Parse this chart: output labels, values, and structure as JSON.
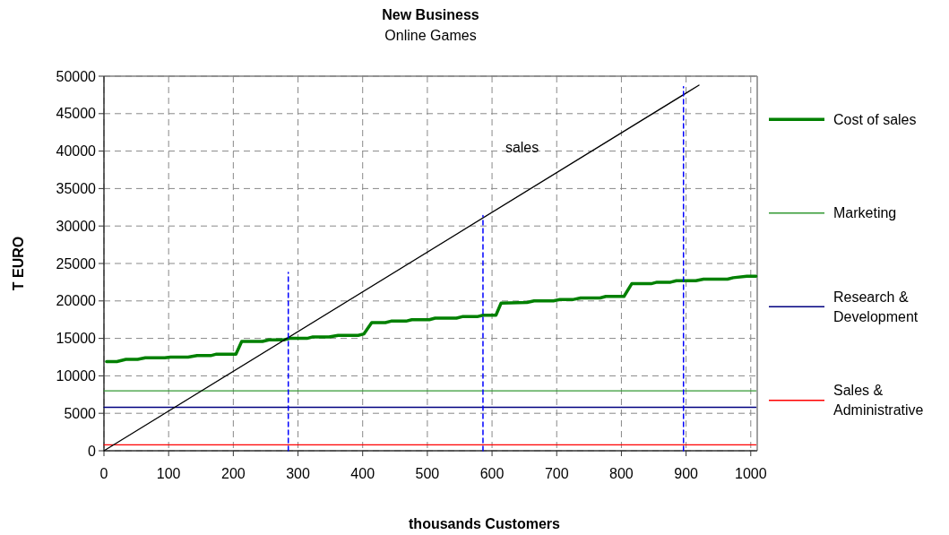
{
  "chart_data": {
    "type": "line",
    "title": "New Business",
    "subtitle": "Online Games",
    "xlabel": "thousands Customers",
    "ylabel": "T EURO",
    "xlim": [
      0,
      1010
    ],
    "xticks": [
      0,
      100,
      200,
      300,
      400,
      500,
      600,
      700,
      800,
      900,
      1000
    ],
    "ylim": [
      0,
      50000
    ],
    "yticks": [
      0,
      5000,
      10000,
      15000,
      20000,
      25000,
      30000,
      35000,
      40000,
      45000,
      50000
    ],
    "grid": true,
    "legend": "right",
    "line_style": "solid",
    "series": [
      {
        "name": "Cost of sales",
        "color": "#008000",
        "x": [
          4,
          20,
          34,
          52,
          64,
          94,
          103,
          130,
          144,
          165,
          174,
          204,
          213,
          245,
          255,
          278,
          287,
          314,
          323,
          348,
          362,
          393,
          402,
          414,
          435,
          444,
          467,
          476,
          503,
          512,
          545,
          554,
          577,
          586,
          606,
          614,
          654,
          665,
          695,
          705,
          726,
          737,
          767,
          776,
          804,
          816,
          846,
          855,
          876,
          885,
          915,
          927,
          964,
          973,
          994,
          1008
        ],
        "values": [
          11900,
          11900,
          12200,
          12200,
          12400,
          12400,
          12500,
          12500,
          12700,
          12700,
          12900,
          12900,
          14600,
          14600,
          14800,
          14800,
          15000,
          15000,
          15200,
          15200,
          15400,
          15400,
          15600,
          17100,
          17100,
          17300,
          17300,
          17500,
          17500,
          17700,
          17700,
          17900,
          17900,
          18100,
          18100,
          19700,
          19800,
          20000,
          20000,
          20200,
          20200,
          20400,
          20400,
          20600,
          20600,
          22300,
          22300,
          22500,
          22500,
          22700,
          22700,
          22900,
          22900,
          23100,
          23300,
          23300
        ]
      },
      {
        "name": "Marketing",
        "color": "#339933",
        "x": [
          0,
          1008
        ],
        "values": [
          8000,
          8000
        ]
      },
      {
        "name": "Research & Development",
        "color": "#000080",
        "x": [
          0,
          1008
        ],
        "values": [
          5800,
          5800
        ]
      },
      {
        "name": "Sales & Administrative",
        "color": "#ff0000",
        "x": [
          0,
          1008
        ],
        "values": [
          800,
          800
        ]
      },
      {
        "color": "#000000",
        "x": [
          0,
          920
        ],
        "values": [
          0,
          48800
        ]
      },
      {
        "color": "#0000ff",
        "line_style": "dashed",
        "x": [
          285,
          285
        ],
        "values": [
          0,
          23800
        ]
      },
      {
        "color": "#0000ff",
        "line_style": "dashed",
        "x": [
          586,
          586
        ],
        "values": [
          0,
          31400
        ]
      },
      {
        "color": "#0000ff",
        "line_style": "dashed",
        "x": [
          896,
          896
        ],
        "values": [
          0,
          48600
        ]
      }
    ],
    "annotations": [
      "sales"
    ]
  }
}
